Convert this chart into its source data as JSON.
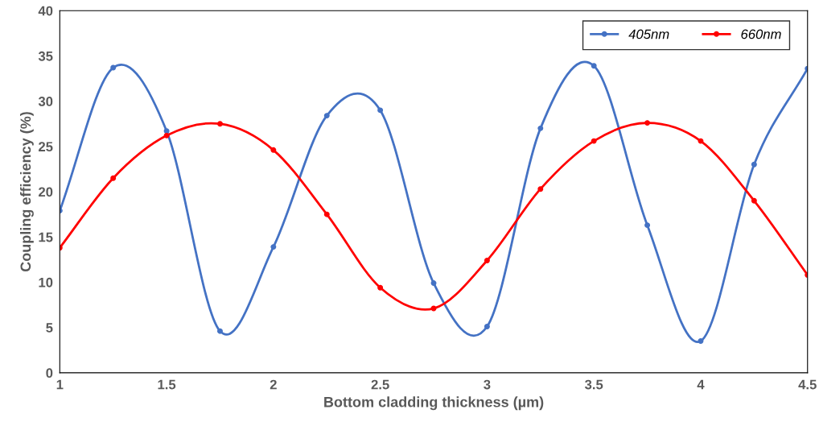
{
  "chart_data": {
    "type": "line",
    "xlabel": "Bottom cladding thickness (µm)",
    "ylabel": "Coupling efficiency (%)",
    "x": [
      1,
      1.25,
      1.5,
      1.75,
      2,
      2.25,
      2.5,
      2.75,
      3,
      3.25,
      3.5,
      3.75,
      4,
      4.25,
      4.5
    ],
    "series": [
      {
        "name": "405nm",
        "color": "#4472c4",
        "values": [
          17.9,
          33.7,
          26.7,
          4.6,
          13.9,
          28.4,
          29.0,
          9.9,
          5.1,
          27.0,
          33.9,
          16.3,
          3.5,
          23.0,
          33.6
        ]
      },
      {
        "name": "660nm",
        "color": "#ff0000",
        "values": [
          13.8,
          21.5,
          26.2,
          27.5,
          24.6,
          17.5,
          9.4,
          7.1,
          12.4,
          20.3,
          25.6,
          27.6,
          25.6,
          19.0,
          10.8
        ]
      }
    ],
    "xlim": [
      1,
      4.5
    ],
    "xticks": [
      1,
      1.5,
      2,
      2.5,
      3,
      3.5,
      4,
      4.5
    ],
    "ylim": [
      0,
      40
    ],
    "yticks": [
      0,
      5,
      10,
      15,
      20,
      25,
      30,
      35,
      40
    ],
    "grid": false,
    "legend": "top right",
    "marker": "circle",
    "line_style": "solid"
  }
}
